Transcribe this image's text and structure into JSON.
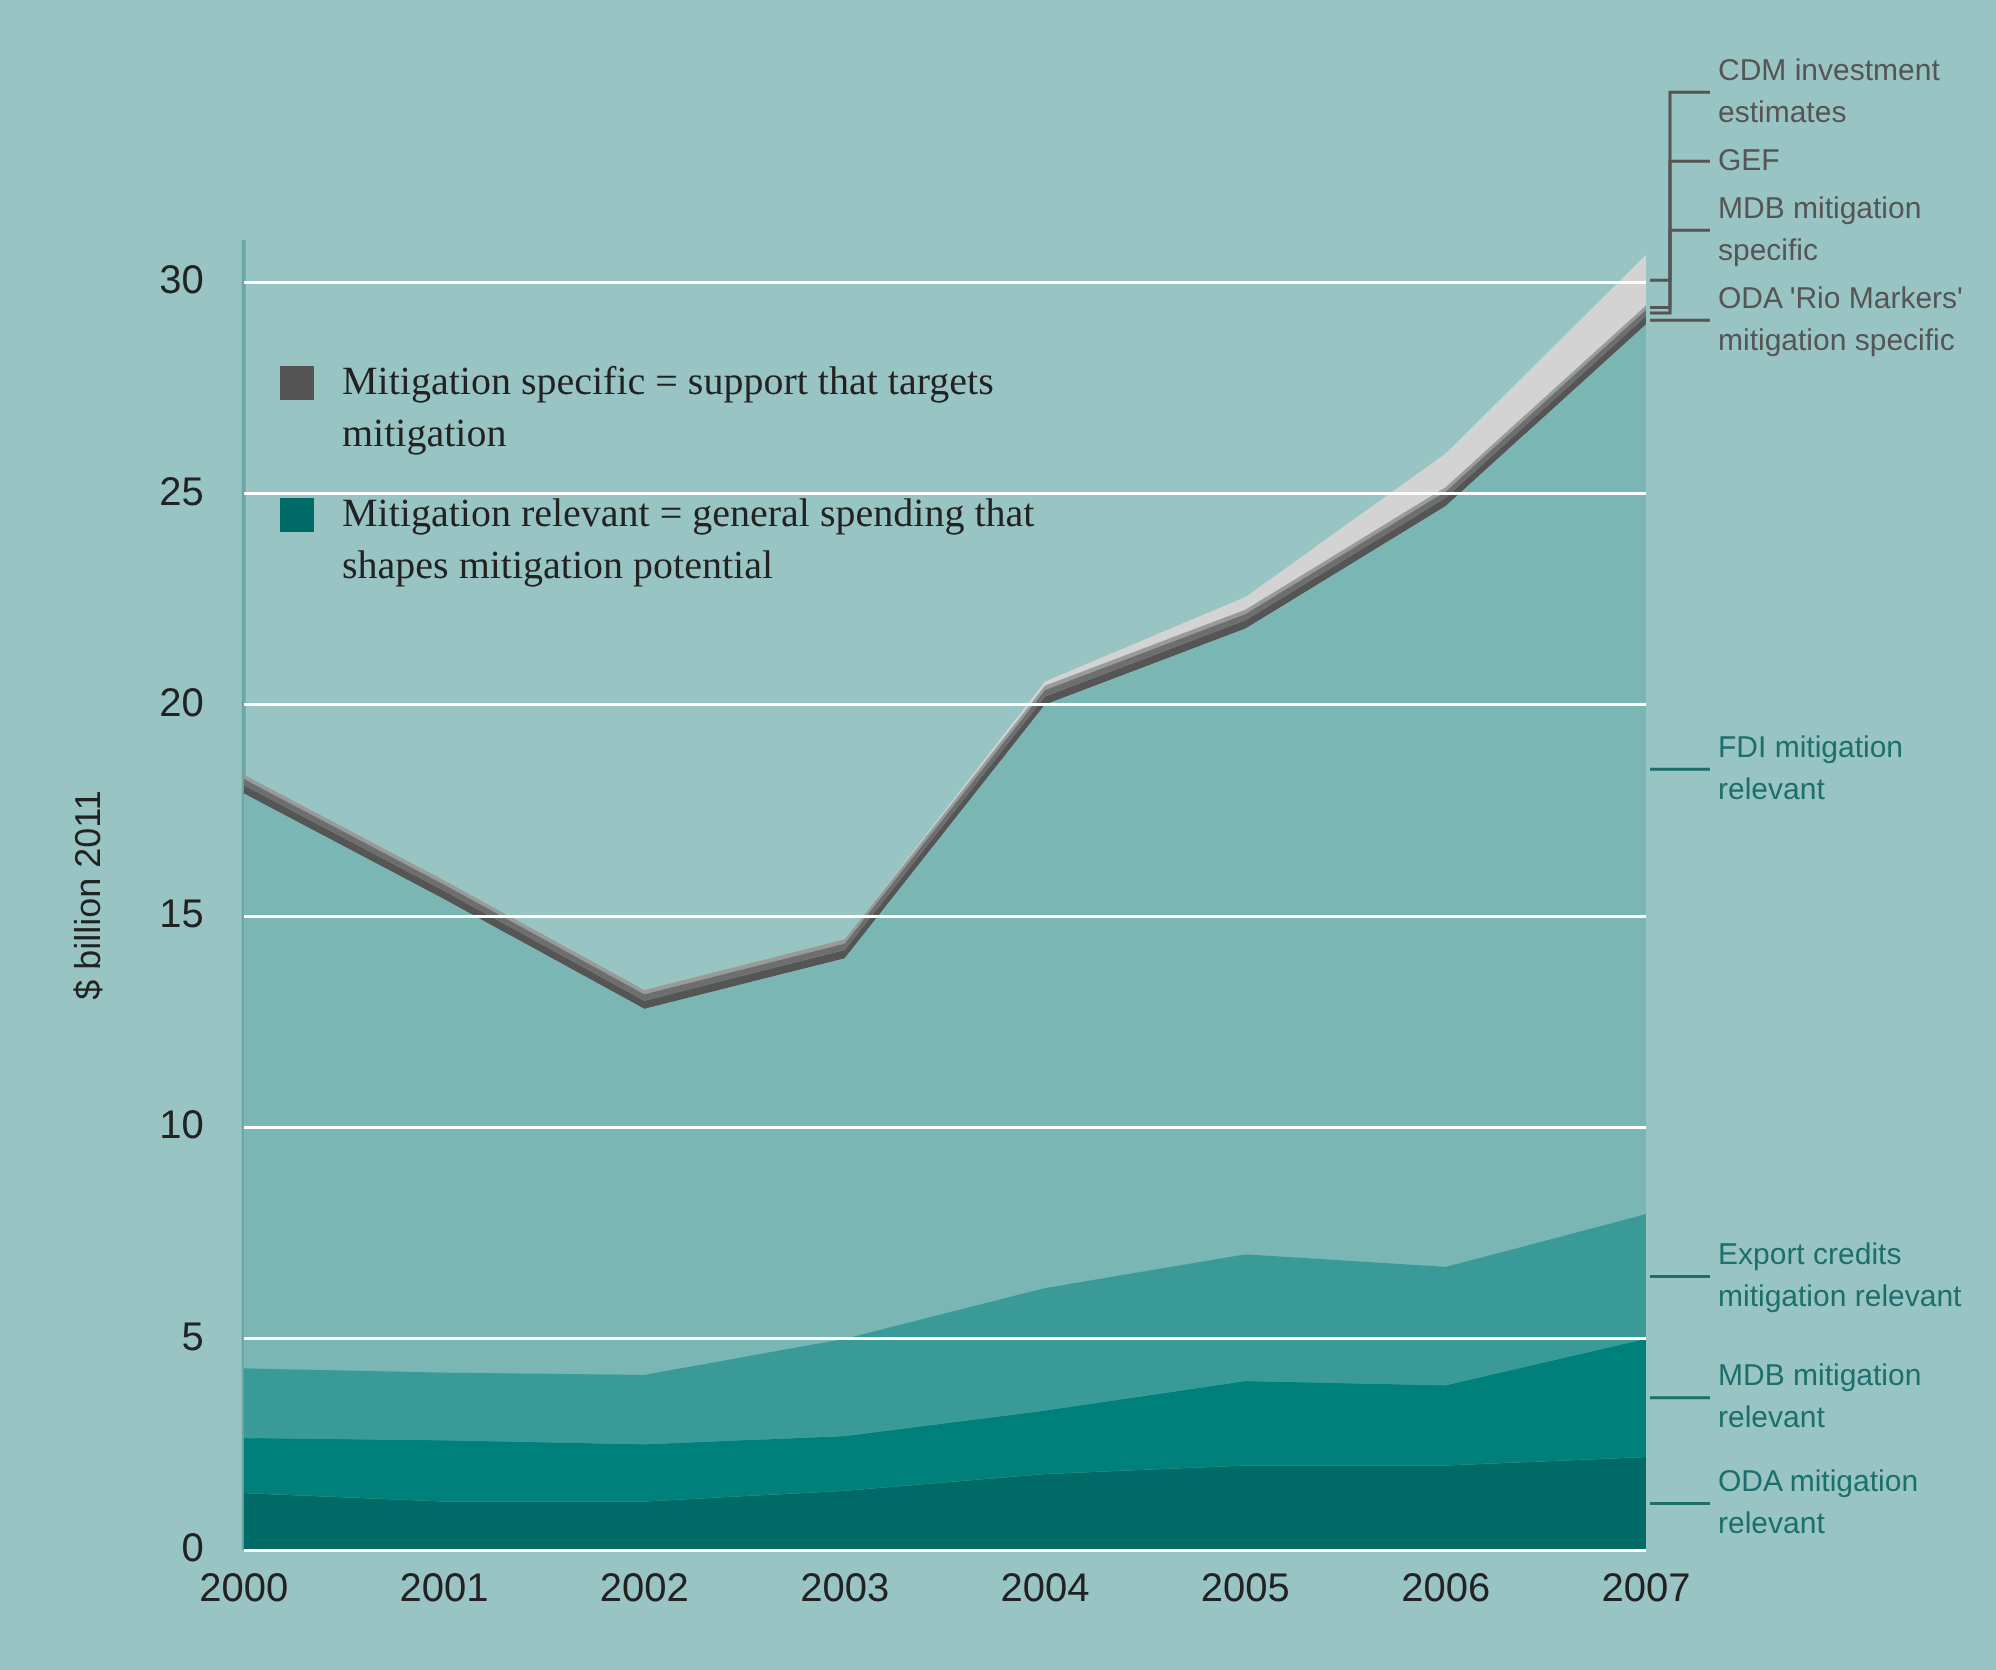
{
  "chart_data": {
    "type": "area",
    "stacked": true,
    "ylabel": "$ billion 2011",
    "categories": [
      "2000",
      "2001",
      "2002",
      "2003",
      "2004",
      "2005",
      "2006",
      "2007"
    ],
    "series": [
      {
        "name": "ODA mitigation relevant",
        "color": "#006b66",
        "values": [
          1.35,
          1.15,
          1.15,
          1.4,
          1.8,
          2.0,
          2.0,
          2.2
        ]
      },
      {
        "name": "MDB mitigation relevant",
        "color": "#00807a",
        "values": [
          1.3,
          1.45,
          1.35,
          1.3,
          1.5,
          2.0,
          1.9,
          2.8
        ]
      },
      {
        "name": "Export credits mitigation relevant",
        "color": "#3a9a98",
        "values": [
          1.65,
          1.6,
          1.65,
          2.3,
          2.9,
          3.0,
          2.8,
          2.95
        ]
      },
      {
        "name": "FDI mitigation relevant",
        "color": "#7ab6b3",
        "values": [
          13.6,
          11.2,
          8.65,
          9.0,
          13.8,
          14.8,
          18.0,
          21.05
        ]
      },
      {
        "name": "ODA 'Rio Markers' mitigation specific",
        "color": "#555555",
        "values": [
          0.2,
          0.2,
          0.2,
          0.2,
          0.2,
          0.2,
          0.2,
          0.2
        ]
      },
      {
        "name": "MDB mitigation specific",
        "color": "#6e6e6e",
        "values": [
          0.15,
          0.15,
          0.15,
          0.15,
          0.15,
          0.15,
          0.15,
          0.15
        ]
      },
      {
        "name": "GEF",
        "color": "#9a9a9a",
        "values": [
          0.1,
          0.1,
          0.1,
          0.1,
          0.1,
          0.1,
          0.1,
          0.1
        ]
      },
      {
        "name": "CDM investment estimates",
        "color": "#d3d3d3",
        "values": [
          0,
          0,
          0,
          0,
          0.1,
          0.3,
          0.8,
          1.2
        ]
      }
    ],
    "ylim": [
      0,
      31
    ],
    "yticks": [
      0,
      5,
      10,
      15,
      20,
      25,
      30
    ],
    "grid": "y",
    "legend": "right",
    "annotations": [
      "Mitigation specific = support that targets mitigation",
      "Mitigation relevant = general spending that shapes mitigation potential"
    ]
  }
}
